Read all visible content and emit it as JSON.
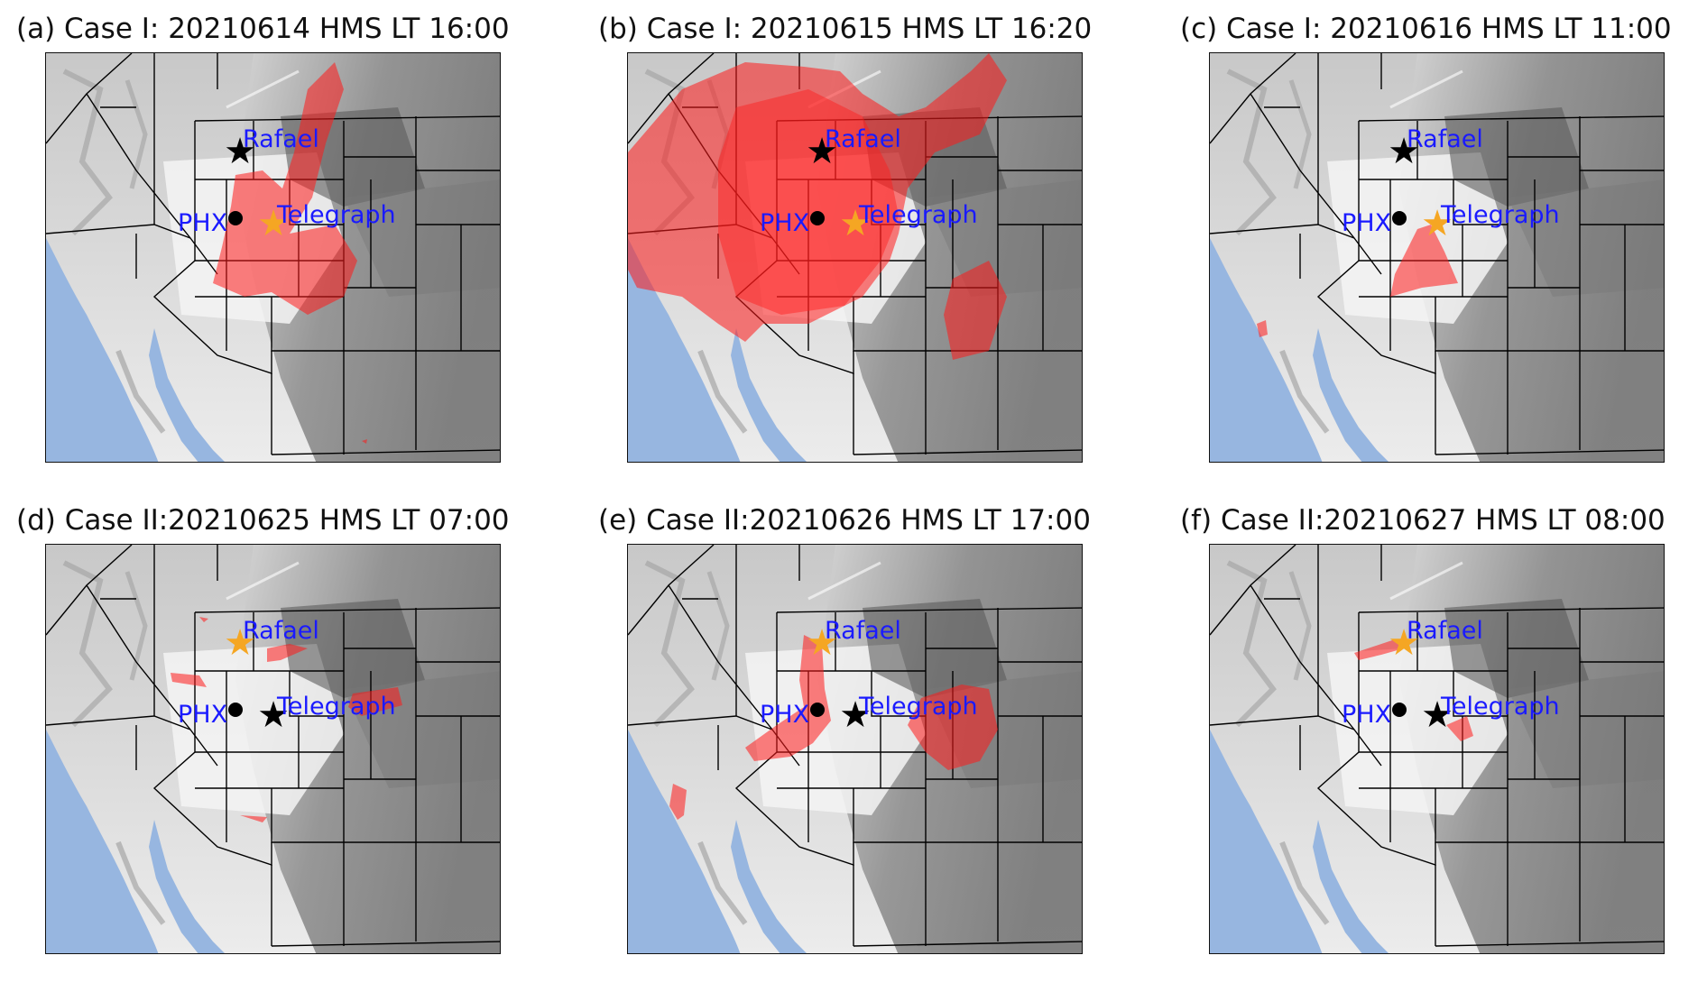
{
  "colors": {
    "plume": "#ff1a1a",
    "water": "#97b6e0",
    "label_text": "#1a1aff",
    "highlight_site": "#f5a623",
    "other_site": "#000000",
    "city": "#000000"
  },
  "labels": {
    "site_north": "Rafael",
    "site_south": "Telegraph",
    "city": "PHX"
  },
  "panels": [
    {
      "title": "(a) Case I: 20210614 HMS LT 16:00",
      "highlighted_site": "Telegraph"
    },
    {
      "title": "(b) Case I: 20210615 HMS LT 16:20",
      "highlighted_site": "Telegraph"
    },
    {
      "title": "(c) Case I: 20210616 HMS LT 11:00",
      "highlighted_site": "Telegraph"
    },
    {
      "title": "(d) Case II:20210625 HMS LT 07:00",
      "highlighted_site": "Rafael"
    },
    {
      "title": "(e) Case II:20210626 HMS LT 17:00",
      "highlighted_site": "Rafael"
    },
    {
      "title": "(f) Case II:20210627 HMS LT 08:00",
      "highlighted_site": "Rafael"
    }
  ]
}
